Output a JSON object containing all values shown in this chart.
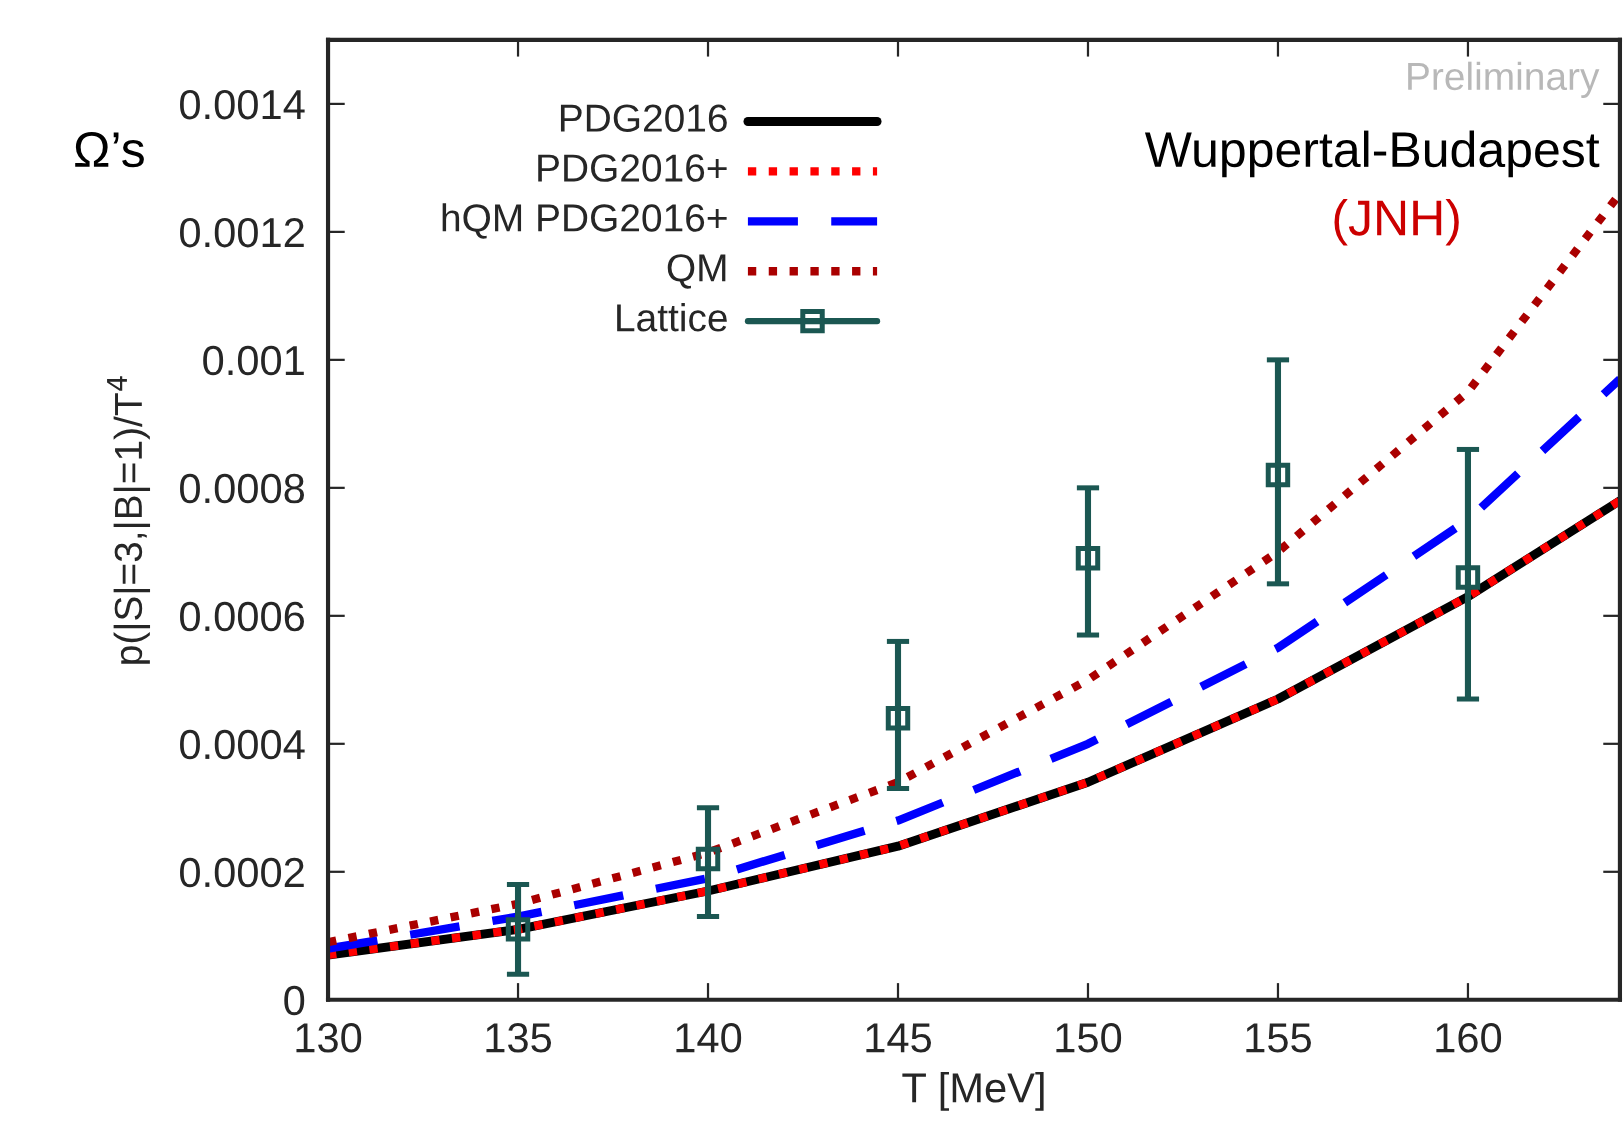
{
  "chart_data": {
    "type": "line",
    "xlabel": "T [MeV]",
    "ylabel": "p(|S|=3,|B|=1)/T$^{4}$",
    "annotations": [
      "Ω’s",
      "Preliminary",
      "Wuppertal-Budapest",
      "(JNH)"
    ],
    "x": [
      130,
      135,
      140,
      145,
      150,
      155,
      160,
      164
    ],
    "series": [
      {
        "name": "PDG2016",
        "color": "#000000",
        "line_style": "solid",
        "values": [
          7e-05,
          0.00011,
          0.00017,
          0.00024,
          0.00034,
          0.00047,
          0.00063,
          0.00078
        ]
      },
      {
        "name": "PDG2016+",
        "color": "#ff0000",
        "line_style": "dotted",
        "values": [
          7e-05,
          0.00011,
          0.00017,
          0.00024,
          0.00034,
          0.00047,
          0.00063,
          0.00078
        ]
      },
      {
        "name": "hQM PDG2016+",
        "color": "#0000ff",
        "line_style": "dashed",
        "values": [
          8e-05,
          0.00013,
          0.00019,
          0.00028,
          0.0004,
          0.00055,
          0.00075,
          0.00097
        ]
      },
      {
        "name": "QM",
        "color": "#aa0000",
        "line_style": "dotted",
        "values": [
          9e-05,
          0.00015,
          0.00023,
          0.00034,
          0.0005,
          0.0007,
          0.00095,
          0.00126
        ]
      },
      {
        "name": "Lattice",
        "type": "scatter",
        "marker": "square",
        "color": "#1b5752",
        "x": [
          135,
          140,
          145,
          150,
          155,
          160
        ],
        "values": [
          0.00011,
          0.00022,
          0.00044,
          0.00069,
          0.00082,
          0.00066
        ],
        "errors": [
          [
            4e-05,
            0.00018
          ],
          [
            0.00013,
            0.0003
          ],
          [
            0.00033,
            0.00056
          ],
          [
            0.00057,
            0.0008
          ],
          [
            0.00065,
            0.001
          ],
          [
            0.00047,
            0.00086
          ]
        ]
      }
    ],
    "xlim": [
      130,
      164
    ],
    "xticks": [
      130,
      135,
      140,
      145,
      150,
      155,
      160
    ],
    "ylim": [
      0,
      0.0015
    ],
    "yticks": [
      0,
      0.0002,
      0.0004,
      0.0006,
      0.0008,
      0.001,
      0.0012,
      0.0014
    ],
    "grid": false,
    "legend": "top left"
  }
}
